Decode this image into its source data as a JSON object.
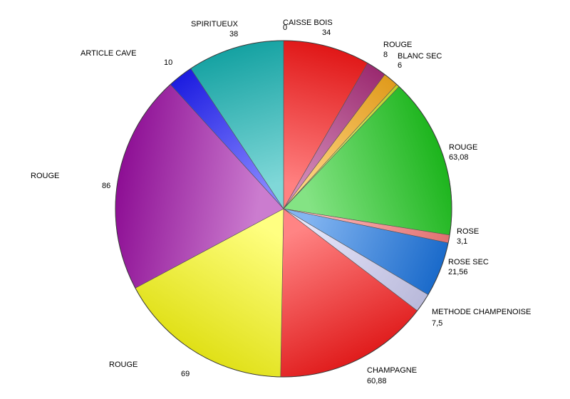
{
  "chart_data": {
    "type": "pie",
    "title": "",
    "slices": [
      {
        "label": "CAISSE BOIS",
        "value": 0,
        "display": "0",
        "color": "#f06a6a"
      },
      {
        "label": "",
        "value": 34,
        "display": "34",
        "color": "#ff1a1a"
      },
      {
        "label": "ROUGE",
        "value": 8,
        "display": "8",
        "color": "#b0307f"
      },
      {
        "label": "BLANC SEC",
        "value": 6,
        "display": "6",
        "color": "#ffb020"
      },
      {
        "label": "",
        "value": 1.2,
        "display": "",
        "color": "#d8ee2a"
      },
      {
        "label": "ROUGE",
        "value": 63.08,
        "display": "63,08",
        "color": "#20cc20"
      },
      {
        "label": "ROSE",
        "value": 3.1,
        "display": "3,1",
        "color": "#ff8080"
      },
      {
        "label": "ROSE SEC",
        "value": 21.56,
        "display": "21,56",
        "color": "#1e78e6"
      },
      {
        "label": "METHODE CHAMPENOISE",
        "value": 7.5,
        "display": "7,5",
        "color": "#d2d2f8"
      },
      {
        "label": "CHAMPAGNE",
        "value": 60.88,
        "display": "60,88",
        "color": "#ff2020"
      },
      {
        "label": "ROUGE",
        "value": 69,
        "display": "69",
        "color": "#ffff1a"
      },
      {
        "label": "ROUGE",
        "value": 86,
        "display": "86",
        "color": "#a010a8"
      },
      {
        "label": "ARTICLE CAVE",
        "value": 10,
        "display": "10",
        "color": "#2020ff"
      },
      {
        "label": "SPIRITUEUX",
        "value": 38,
        "display": "38",
        "color": "#18b8b8"
      }
    ],
    "legend": "none",
    "start_angle": "12 o'clock",
    "direction": "clockwise"
  }
}
